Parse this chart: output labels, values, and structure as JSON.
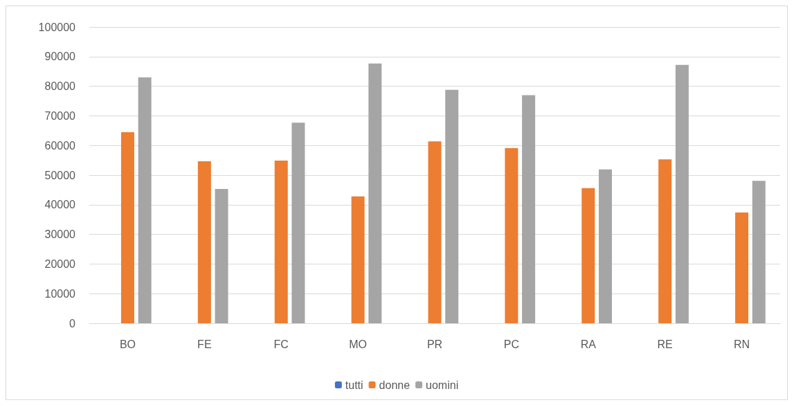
{
  "chart_data": {
    "type": "bar",
    "categories": [
      "BO",
      "FE",
      "FC",
      "MO",
      "PR",
      "PC",
      "RA",
      "RE",
      "RN"
    ],
    "series": [
      {
        "name": "tutti",
        "color": "#4472c4",
        "values": [
          null,
          null,
          null,
          null,
          null,
          null,
          null,
          null,
          null
        ]
      },
      {
        "name": "donne",
        "color": "#ed7d31",
        "values": [
          64500,
          54700,
          54900,
          42800,
          61400,
          59100,
          45600,
          55300,
          37400
        ]
      },
      {
        "name": "uomini",
        "color": "#a5a5a5",
        "values": [
          83000,
          45300,
          67700,
          87700,
          78800,
          77000,
          51900,
          87200,
          48100
        ]
      }
    ],
    "ylim": [
      0,
      100000
    ],
    "yticks": [
      0,
      10000,
      20000,
      30000,
      40000,
      50000,
      60000,
      70000,
      80000,
      90000,
      100000
    ],
    "grid": "y",
    "legend": "bottom"
  }
}
